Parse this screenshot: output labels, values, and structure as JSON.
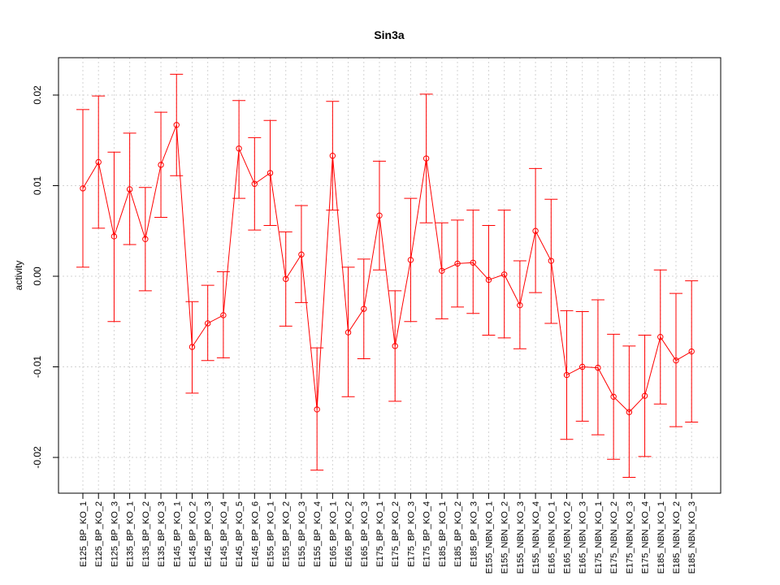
{
  "chart_data": {
    "type": "line",
    "title": "Sin3a",
    "xlabel": "",
    "ylabel": "activity",
    "ylim": [
      -0.024,
      0.0245
    ],
    "yticks": [
      -0.02,
      -0.01,
      0.0,
      0.01,
      0.02
    ],
    "ytick_labels": [
      "-0.02",
      "-0.01",
      "0.00",
      "0.01",
      "0.02"
    ],
    "grid": true,
    "color": "#ff0000",
    "categories": [
      "E125_BP_KO_1",
      "E125_BP_KO_2",
      "E125_BP_KO_3",
      "E135_BP_KO_1",
      "E135_BP_KO_2",
      "E135_BP_KO_3",
      "E145_BP_KO_1",
      "E145_BP_KO_2",
      "E145_BP_KO_3",
      "E145_BP_KO_4",
      "E145_BP_KO_5",
      "E145_BP_KO_6",
      "E155_BP_KO_1",
      "E155_BP_KO_2",
      "E155_BP_KO_3",
      "E155_BP_KO_4",
      "E165_BP_KO_1",
      "E165_BP_KO_2",
      "E165_BP_KO_3",
      "E175_BP_KO_1",
      "E175_BP_KO_2",
      "E175_BP_KO_3",
      "E175_BP_KO_4",
      "E185_BP_KO_1",
      "E185_BP_KO_2",
      "E185_BP_KO_3",
      "E155_NBN_KO_1",
      "E155_NBN_KO_2",
      "E155_NBN_KO_3",
      "E155_NBN_KO_4",
      "E165_NBN_KO_1",
      "E165_NBN_KO_2",
      "E165_NBN_KO_3",
      "E175_NBN_KO_1",
      "E175_NBN_KO_2",
      "E175_NBN_KO_3",
      "E175_NBN_KO_4",
      "E185_NBN_KO_1",
      "E185_NBN_KO_2",
      "E185_NBN_KO_3"
    ],
    "series": [
      {
        "values": [
          0.0097,
          0.0126,
          0.0044,
          0.0096,
          0.0041,
          0.0123,
          0.0167,
          -0.0078,
          -0.0052,
          -0.0043,
          0.0141,
          0.0102,
          0.0114,
          -0.0003,
          0.0024,
          -0.0147,
          0.0133,
          -0.0062,
          -0.0036,
          0.0067,
          -0.0077,
          0.0018,
          0.013,
          0.0006,
          0.0014,
          0.0015,
          -0.0004,
          0.0002,
          -0.0032,
          0.005,
          0.0017,
          -0.0109,
          -0.01,
          -0.0101,
          -0.0133,
          -0.015,
          -0.0132,
          -0.0067,
          -0.0093,
          -0.0083
        ],
        "upper": [
          0.0184,
          0.0199,
          0.0137,
          0.0158,
          0.0098,
          0.0181,
          0.0223,
          -0.0028,
          -0.001,
          0.0005,
          0.0194,
          0.0153,
          0.0172,
          0.0049,
          0.0078,
          -0.0079,
          0.0193,
          0.001,
          0.0019,
          0.0127,
          -0.0016,
          0.0086,
          0.0201,
          0.0059,
          0.0062,
          0.0073,
          0.0056,
          0.0073,
          0.0017,
          0.0119,
          0.0085,
          -0.0038,
          -0.0039,
          -0.0026,
          -0.0064,
          -0.0077,
          -0.0065,
          0.0007,
          -0.0019,
          -0.0005
        ],
        "lower": [
          0.001,
          0.0053,
          -0.005,
          0.0035,
          -0.0016,
          0.0065,
          0.0111,
          -0.0129,
          -0.0093,
          -0.009,
          0.0086,
          0.0051,
          0.0056,
          -0.0055,
          -0.0029,
          -0.0214,
          0.0073,
          -0.0133,
          -0.0091,
          0.0007,
          -0.0138,
          -0.005,
          0.0059,
          -0.0047,
          -0.0034,
          -0.0041,
          -0.0065,
          -0.0068,
          -0.008,
          -0.0018,
          -0.0052,
          -0.018,
          -0.016,
          -0.0175,
          -0.0202,
          -0.0222,
          -0.0199,
          -0.0141,
          -0.0166,
          -0.0161
        ]
      }
    ]
  }
}
